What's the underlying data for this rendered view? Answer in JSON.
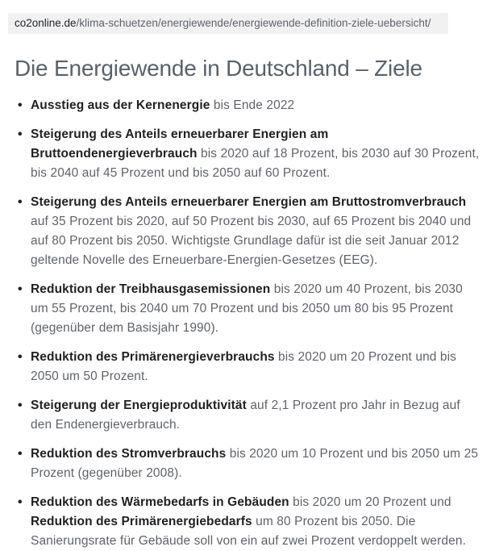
{
  "browser": {
    "url_domain": "co2online.de",
    "url_path": "/klima-schuetzen/energiewende/energiewende-definition-ziele-uebersicht/"
  },
  "page": {
    "title": "Die Energiewende in Deutschland – Ziele"
  },
  "goals": {
    "items": [
      {
        "segments": [
          {
            "text": "Ausstieg aus der Kernenergie",
            "bold": true
          },
          {
            "text": " bis Ende 2022",
            "bold": false
          }
        ]
      },
      {
        "segments": [
          {
            "text": "Steigerung des Anteils erneuerbarer Energien am Bruttoendenergieverbrauch",
            "bold": true
          },
          {
            "text": " bis 2020 auf 18 Prozent, bis 2030 auf 30 Prozent, bis 2040 auf 45 Prozent und bis 2050 auf 60 Prozent.",
            "bold": false
          }
        ]
      },
      {
        "segments": [
          {
            "text": "Steigerung des Anteils erneuerbarer Energien am Bruttostromverbrauch",
            "bold": true
          },
          {
            "text": " auf 35 Prozent bis 2020, auf 50 Prozent bis 2030, auf 65 Prozent bis 2040 und auf 80 Prozent bis 2050. Wichtigste Grundlage dafür ist die seit Januar 2012 geltende Novelle des Erneuerbare-Energien-Gesetzes (EEG).",
            "bold": false
          }
        ]
      },
      {
        "segments": [
          {
            "text": "Reduktion der Treibhausgasemissionen",
            "bold": true
          },
          {
            "text": " bis 2020 um 40 Prozent, bis 2030 um 55 Prozent, bis 2040 um 70 Prozent und bis 2050 um 80 bis 95 Prozent (gegenüber dem Basisjahr 1990).",
            "bold": false
          }
        ]
      },
      {
        "segments": [
          {
            "text": "Reduktion des Primärenergieverbrauchs",
            "bold": true
          },
          {
            "text": " bis 2020 um 20 Prozent und bis 2050 um 50 Prozent.",
            "bold": false
          }
        ]
      },
      {
        "segments": [
          {
            "text": "Steigerung der Energieproduktivität",
            "bold": true
          },
          {
            "text": " auf 2,1 Prozent pro Jahr in Bezug auf den Endenergieverbrauch.",
            "bold": false
          }
        ]
      },
      {
        "segments": [
          {
            "text": "Reduktion des Stromverbrauchs",
            "bold": true
          },
          {
            "text": " bis 2020 um 10 Prozent und bis 2050 um 25 Prozent (gegenüber 2008).",
            "bold": false
          }
        ]
      },
      {
        "segments": [
          {
            "text": "Reduktion des Wärmebedarfs in Gebäuden",
            "bold": true
          },
          {
            "text": " bis 2020 um 20 Prozent und ",
            "bold": false
          },
          {
            "text": "Reduktion des Primärenergiebedarfs",
            "bold": true
          },
          {
            "text": " um 80 Prozent bis 2050. Die Sanierungsrate für Gebäude soll von ein auf zwei Prozent verdoppelt werden.",
            "bold": false
          }
        ]
      }
    ]
  },
  "colors": {
    "urlbar_background": "#f1f1f2",
    "url_domain_text": "#1f2328",
    "url_path_text": "#5f6368",
    "title_text": "#59616a",
    "body_text": "#5f6368",
    "bold_text": "#202124"
  }
}
